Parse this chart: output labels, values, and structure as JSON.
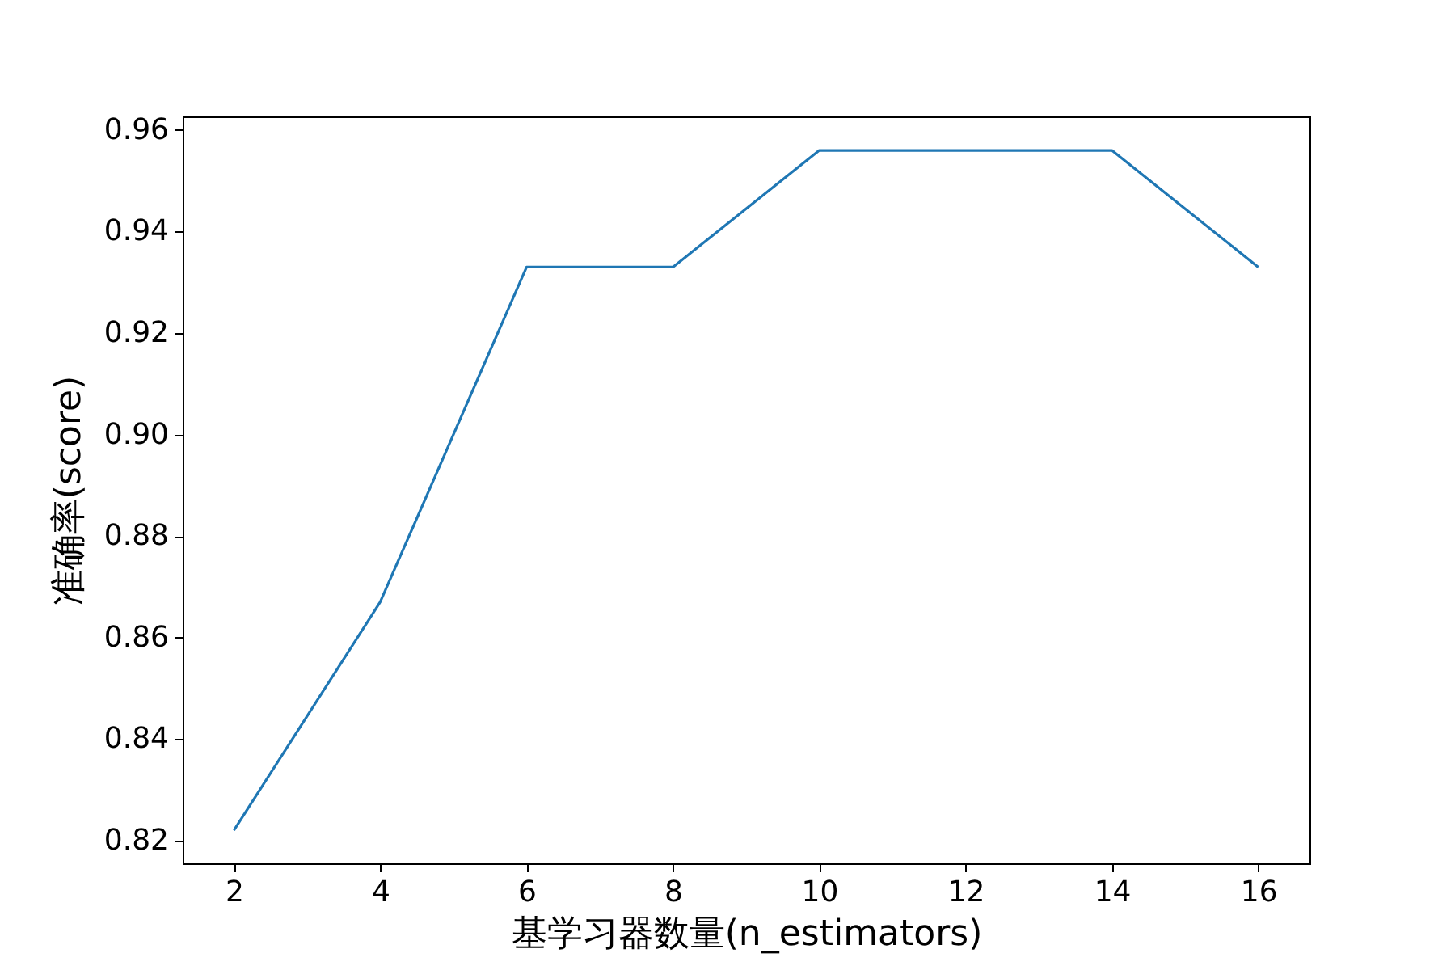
{
  "chart_data": {
    "type": "line",
    "xlabel": "基学习器数量(n_estimators)",
    "ylabel": "准确率(score)",
    "x": [
      2,
      4,
      6,
      8,
      10,
      12,
      14,
      16
    ],
    "series": [
      {
        "color": "#1f77b4",
        "values": [
          0.822,
          0.867,
          0.933,
          0.933,
          0.956,
          0.956,
          0.956,
          0.933
        ]
      }
    ],
    "xlim": [
      1.3,
      16.7
    ],
    "xticks": [
      2,
      4,
      6,
      8,
      10,
      12,
      14,
      16
    ],
    "ylim": [
      0.8155,
      0.9627
    ],
    "yticks": [
      {
        "value": 0.82,
        "label": "0.82"
      },
      {
        "value": 0.84,
        "label": "0.84"
      },
      {
        "value": 0.86,
        "label": "0.86"
      },
      {
        "value": 0.88,
        "label": "0.88"
      },
      {
        "value": 0.9,
        "label": "0.90"
      },
      {
        "value": 0.92,
        "label": "0.92"
      },
      {
        "value": 0.94,
        "label": "0.94"
      },
      {
        "value": 0.96,
        "label": "0.96"
      }
    ],
    "grid": false
  }
}
